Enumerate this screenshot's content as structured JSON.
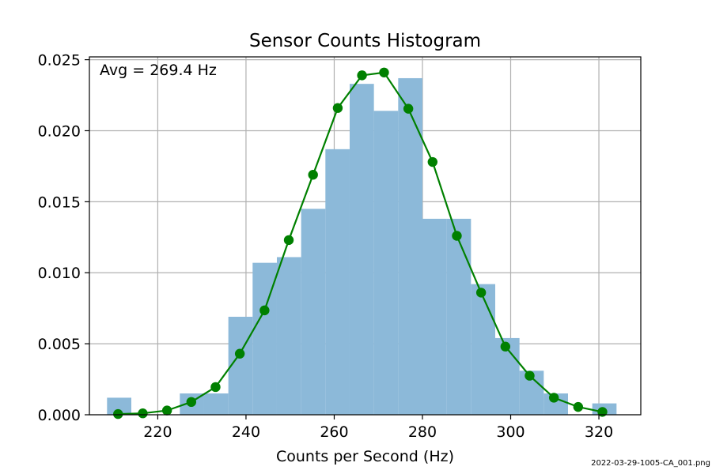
{
  "chart_data": {
    "type": "bar",
    "title": "Sensor Counts Histogram",
    "xlabel": "Counts per Second (Hz)",
    "ylabel": "",
    "xlim": [
      204.5,
      329.5
    ],
    "ylim": [
      0,
      0.0252
    ],
    "xticks": [
      220,
      240,
      260,
      280,
      300,
      320
    ],
    "yticks": [
      0,
      0.005,
      0.01,
      0.015,
      0.02,
      0.025
    ],
    "ytick_labels": [
      "0.000",
      "0.005",
      "0.010",
      "0.015",
      "0.020",
      "0.025"
    ],
    "grid": true,
    "annotation": "Avg = 269.4 Hz",
    "histogram": {
      "color": "#8cb9d9",
      "bins": [
        {
          "x0": 208.5,
          "x1": 214.0,
          "value": 0.0012
        },
        {
          "x0": 214.0,
          "x1": 219.5,
          "value": 0.0
        },
        {
          "x0": 219.5,
          "x1": 225.0,
          "value": 0.0
        },
        {
          "x0": 225.0,
          "x1": 230.5,
          "value": 0.0015
        },
        {
          "x0": 230.5,
          "x1": 236.0,
          "value": 0.0015
        },
        {
          "x0": 236.0,
          "x1": 241.5,
          "value": 0.0069
        },
        {
          "x0": 241.5,
          "x1": 247.0,
          "value": 0.0107
        },
        {
          "x0": 247.0,
          "x1": 252.5,
          "value": 0.0111
        },
        {
          "x0": 252.5,
          "x1": 258.0,
          "value": 0.0145
        },
        {
          "x0": 258.0,
          "x1": 263.5,
          "value": 0.0187
        },
        {
          "x0": 263.5,
          "x1": 269.0,
          "value": 0.0233
        },
        {
          "x0": 269.0,
          "x1": 274.5,
          "value": 0.0214
        },
        {
          "x0": 274.5,
          "x1": 280.0,
          "value": 0.0237
        },
        {
          "x0": 280.0,
          "x1": 285.5,
          "value": 0.0138
        },
        {
          "x0": 285.5,
          "x1": 291.0,
          "value": 0.0138
        },
        {
          "x0": 291.0,
          "x1": 296.5,
          "value": 0.0092
        },
        {
          "x0": 296.5,
          "x1": 302.0,
          "value": 0.0054
        },
        {
          "x0": 302.0,
          "x1": 307.5,
          "value": 0.0031
        },
        {
          "x0": 307.5,
          "x1": 313.0,
          "value": 0.0015
        },
        {
          "x0": 313.0,
          "x1": 318.5,
          "value": 0.0
        },
        {
          "x0": 318.5,
          "x1": 324.0,
          "value": 0.0008
        }
      ]
    },
    "curve": {
      "color": "#008000",
      "points": [
        [
          211.0,
          5e-05
        ],
        [
          216.6,
          0.0001
        ],
        [
          222.1,
          0.0003
        ],
        [
          227.6,
          0.0009
        ],
        [
          233.1,
          0.00195
        ],
        [
          238.6,
          0.0043
        ],
        [
          244.2,
          0.00735
        ],
        [
          249.7,
          0.0123
        ],
        [
          255.2,
          0.0169
        ],
        [
          260.8,
          0.0216
        ],
        [
          266.3,
          0.0239
        ],
        [
          271.3,
          0.0241
        ],
        [
          276.8,
          0.02155
        ],
        [
          282.3,
          0.0178
        ],
        [
          287.8,
          0.0126
        ],
        [
          293.3,
          0.0086
        ],
        [
          298.8,
          0.0048
        ],
        [
          304.3,
          0.00275
        ],
        [
          309.8,
          0.0012
        ],
        [
          315.3,
          0.00055
        ],
        [
          320.8,
          0.0002
        ]
      ]
    }
  },
  "footer": "2022-03-29-1005-CA_001.png"
}
